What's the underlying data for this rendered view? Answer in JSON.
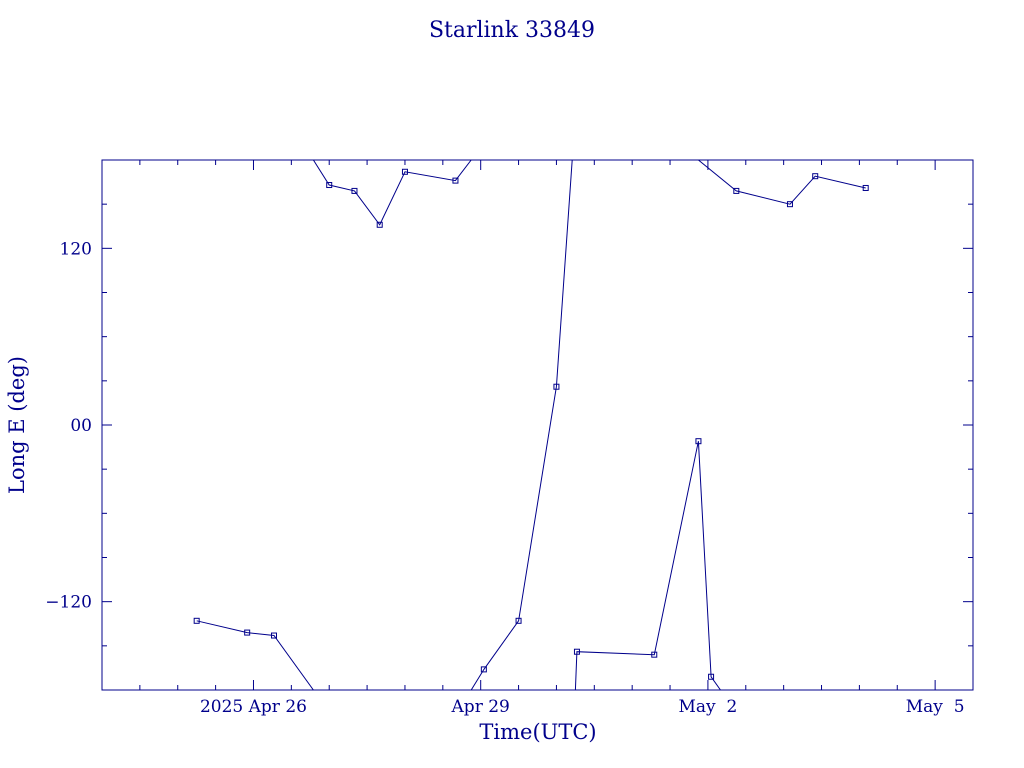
{
  "chart_data": {
    "type": "line",
    "title": "Starlink 33849",
    "xlabel": "Time(UTC)",
    "ylabel": "Long E (deg)",
    "color": "#00008b",
    "x_type": "date",
    "xlim": [
      "2025-04-24T00:00",
      "2025-05-05T12:00"
    ],
    "ylim": [
      -180,
      180
    ],
    "x_ticks": [
      {
        "value": "2025-04-26T00:00",
        "label": "2025 Apr 26"
      },
      {
        "value": "2025-04-29T00:00",
        "label": "Apr 29"
      },
      {
        "value": "2025-05-02T00:00",
        "label": "May  2"
      },
      {
        "value": "2025-05-05T00:00",
        "label": "May  5"
      }
    ],
    "y_ticks": [
      {
        "value": 120,
        "label": "120"
      },
      {
        "value": 0,
        "label": "00"
      },
      {
        "value": -120,
        "label": "−120"
      }
    ],
    "segments": [
      {
        "points": [
          {
            "x": "2025-04-25T06:00",
            "y": -133
          },
          {
            "x": "2025-04-25T22:00",
            "y": -141
          },
          {
            "x": "2025-04-26T06:30",
            "y": -143
          },
          {
            "x": "2025-04-26T19:00",
            "y": -180
          }
        ]
      },
      {
        "points": [
          {
            "x": "2025-04-26T19:00",
            "y": 180
          },
          {
            "x": "2025-04-27T00:00",
            "y": 163
          },
          {
            "x": "2025-04-27T08:00",
            "y": 159
          },
          {
            "x": "2025-04-27T16:00",
            "y": 136
          },
          {
            "x": "2025-04-28T00:00",
            "y": 172
          },
          {
            "x": "2025-04-28T16:00",
            "y": 166
          },
          {
            "x": "2025-04-28T21:00",
            "y": 180
          }
        ]
      },
      {
        "points": [
          {
            "x": "2025-04-28T21:00",
            "y": -180
          },
          {
            "x": "2025-04-29T01:00",
            "y": -166
          },
          {
            "x": "2025-04-29T12:00",
            "y": -133
          },
          {
            "x": "2025-04-30T00:00",
            "y": 26
          },
          {
            "x": "2025-04-30T05:00",
            "y": 180
          }
        ]
      },
      {
        "points": [
          {
            "x": "2025-04-30T06:00",
            "y": -180
          },
          {
            "x": "2025-04-30T06:30",
            "y": -154
          },
          {
            "x": "2025-05-01T07:00",
            "y": -156
          },
          {
            "x": "2025-05-01T21:00",
            "y": -11
          },
          {
            "x": "2025-05-02T01:00",
            "y": -171
          },
          {
            "x": "2025-05-02T04:00",
            "y": -180
          }
        ]
      },
      {
        "points": [
          {
            "x": "2025-05-01T21:00",
            "y": 180
          },
          {
            "x": "2025-05-02T09:00",
            "y": 159
          },
          {
            "x": "2025-05-03T02:00",
            "y": 150
          },
          {
            "x": "2025-05-03T10:00",
            "y": 169
          },
          {
            "x": "2025-05-04T02:00",
            "y": 161
          }
        ]
      }
    ]
  }
}
